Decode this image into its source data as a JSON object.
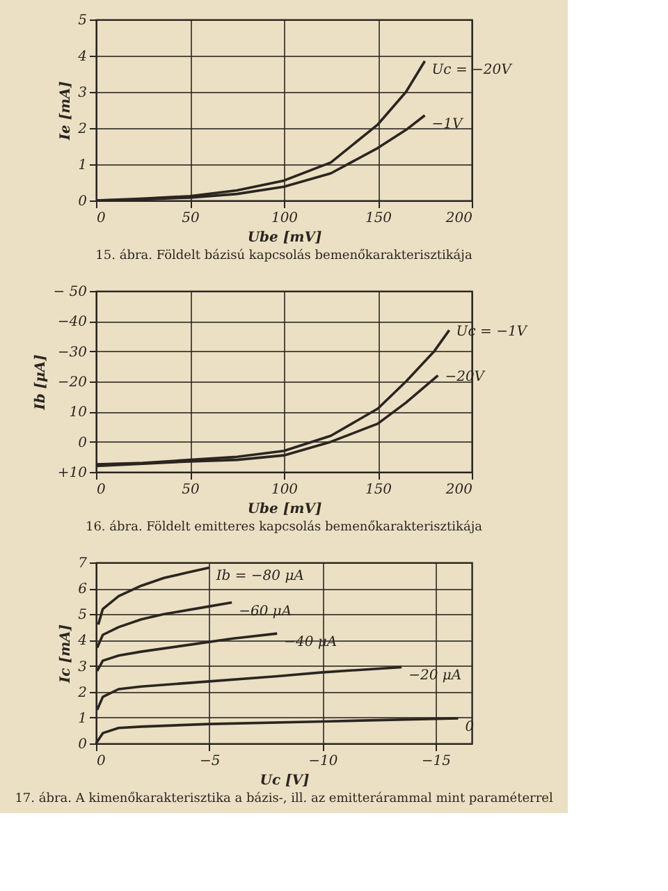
{
  "chart_data": [
    {
      "type": "line",
      "title": "15. ábra. Földelt bázisú kapcsolás bemenőkarakterisztikája",
      "xlabel": "Ube [mV]",
      "ylabel": "Ie [mA]",
      "xlim": [
        0,
        200
      ],
      "xticks": [
        0,
        50,
        100,
        150,
        200
      ],
      "ylim": [
        0,
        5
      ],
      "yticks": [
        0,
        1,
        2,
        3,
        4,
        5
      ],
      "grid": true,
      "legend": false,
      "marker": "none",
      "line_style": "solid",
      "x": [
        0,
        25,
        50,
        75,
        100,
        125,
        150,
        165,
        175
      ],
      "series": [
        {
          "name": "Uc = −20V",
          "color": "#2a2520",
          "values": [
            0,
            0.05,
            0.12,
            0.28,
            0.55,
            1.05,
            2.1,
            3.0,
            3.85
          ]
        },
        {
          "name": "−1V",
          "color": "#2a2520",
          "values": [
            0,
            0.03,
            0.08,
            0.18,
            0.38,
            0.75,
            1.45,
            1.95,
            2.35
          ]
        }
      ]
    },
    {
      "type": "line",
      "title": "16. ábra. Földelt emitteres kapcsolás bemenőkarakterisztikája",
      "xlabel": "Ube [mV]",
      "ylabel": "Ib [μA]",
      "xlim": [
        0,
        200
      ],
      "xticks": [
        0,
        50,
        100,
        150,
        200
      ],
      "ylim": [
        10,
        -50
      ],
      "yticks": [
        {
          "value": -50,
          "label": "− 50"
        },
        -40,
        -30,
        -20,
        {
          "value": -10,
          "label": "10"
        },
        0,
        {
          "value": 10,
          "label": "+10"
        }
      ],
      "grid": true,
      "legend": false,
      "marker": "none",
      "line_style": "solid",
      "series": [
        {
          "name": "Uc = −1V",
          "color": "#2a2520",
          "x": [
            0,
            25,
            50,
            75,
            100,
            125,
            150,
            165,
            180,
            188
          ],
          "values": [
            7.5,
            7,
            6,
            5,
            3,
            -2,
            -11,
            -20,
            -30,
            -37
          ]
        },
        {
          "name": "−20V",
          "color": "#2a2520",
          "x": [
            0,
            25,
            50,
            75,
            100,
            125,
            150,
            165,
            182
          ],
          "values": [
            8,
            7.3,
            6.5,
            6,
            4.5,
            0,
            -6,
            -13,
            -22
          ]
        }
      ]
    },
    {
      "type": "line",
      "title": "17. ábra. A kimenőkarakterisztika a bázis-, ill. az emitterárammal mint paraméterrel",
      "xlabel": "Uc [V]",
      "ylabel": "Ic [mA]",
      "xlim": [
        0,
        -16.6
      ],
      "xticks": [
        0,
        -5,
        -10,
        -15
      ],
      "ylim": [
        0,
        7
      ],
      "yticks": [
        0,
        1,
        2,
        3,
        4,
        5,
        6,
        7
      ],
      "grid": true,
      "legend": false,
      "marker": "none",
      "line_style": "solid",
      "series": [
        {
          "name": "Ib = −80 μA",
          "color": "#2a2520",
          "x": [
            -0.1,
            -0.3,
            -1,
            -2,
            -3,
            -4,
            -5
          ],
          "values": [
            4.6,
            5.2,
            5.7,
            6.1,
            6.4,
            6.6,
            6.8
          ]
        },
        {
          "name": "−60 μA",
          "color": "#2a2520",
          "x": [
            -0.05,
            -0.3,
            -1,
            -2,
            -3,
            -5,
            -6
          ],
          "values": [
            3.7,
            4.2,
            4.5,
            4.8,
            5.0,
            5.3,
            5.45
          ]
        },
        {
          "name": "−40 μA",
          "color": "#2a2520",
          "x": [
            -0.05,
            -0.3,
            -1,
            -2,
            -4,
            -6,
            -8
          ],
          "values": [
            2.8,
            3.2,
            3.4,
            3.55,
            3.8,
            4.05,
            4.25
          ]
        },
        {
          "name": "−20 μA",
          "color": "#2a2520",
          "x": [
            -0.05,
            -0.3,
            -1,
            -2,
            -5,
            -8,
            -10,
            -13.5
          ],
          "values": [
            1.3,
            1.8,
            2.1,
            2.2,
            2.4,
            2.6,
            2.75,
            2.95
          ]
        },
        {
          "name": "0",
          "color": "#2a2520",
          "x": [
            0,
            -0.3,
            -1,
            -2,
            -5,
            -10,
            -16
          ],
          "values": [
            0,
            0.4,
            0.6,
            0.65,
            0.75,
            0.85,
            0.97
          ]
        }
      ]
    }
  ]
}
